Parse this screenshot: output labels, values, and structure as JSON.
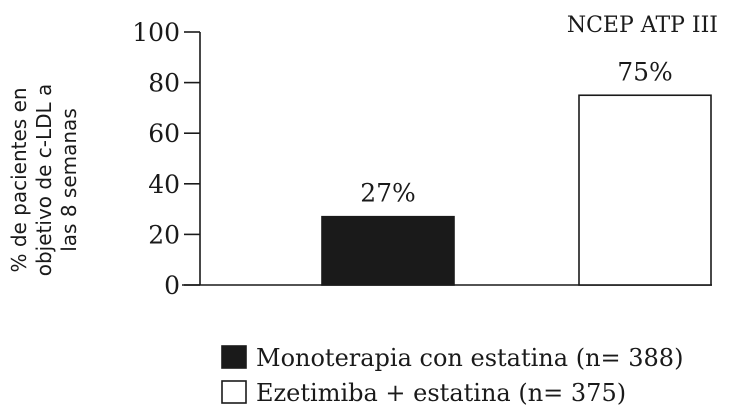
{
  "chart_data": {
    "type": "bar",
    "title": "NCEP ATP III",
    "ylabel_lines": [
      "% de pacientes en",
      "objetivo de c-LDL a",
      "las 8 semanas"
    ],
    "xlabel": "",
    "ylim": [
      0,
      100
    ],
    "yticks": [
      0,
      20,
      40,
      60,
      80,
      100
    ],
    "ytick_labels": [
      "0",
      "20",
      "40",
      "60",
      "80",
      "100"
    ],
    "grid": false,
    "legend_position": "bottom",
    "series": [
      {
        "name": "Monoterapia con estatina (n= 388)",
        "value": 27,
        "label": "27%",
        "fill": "#1a1a1a"
      },
      {
        "name": "Ezetimiba + estatina (n= 375)",
        "value": 75,
        "label": "75%",
        "fill": "#ffffff"
      }
    ]
  }
}
